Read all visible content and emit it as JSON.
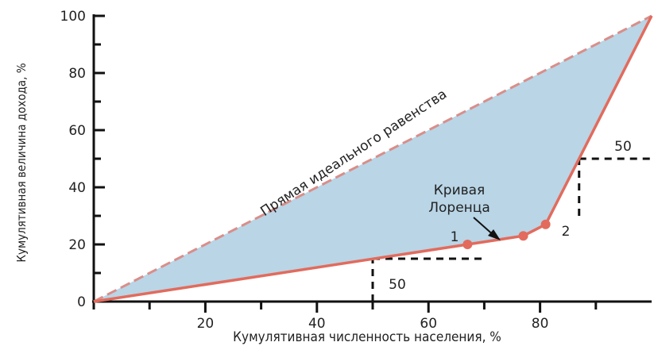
{
  "chart_data": {
    "type": "line",
    "xlabel": "Кумулятивная численность населения, %",
    "ylabel": "Кумулятивная величина дохода, %",
    "xlim": [
      0,
      100
    ],
    "ylim": [
      0,
      100
    ],
    "x_ticks": [
      20,
      40,
      60,
      80
    ],
    "y_ticks": [
      0,
      20,
      40,
      60,
      80,
      100
    ],
    "grid": false,
    "colors": {
      "fill": "#b9d5e6",
      "curve": "#e26b5d",
      "equality_line": "#d98e8a",
      "guides": "#111111"
    },
    "series": [
      {
        "name": "Прямая идеального равенства",
        "x": [
          0,
          100
        ],
        "y": [
          0,
          100
        ]
      },
      {
        "name": "Кривая Лоренца",
        "x": [
          0,
          67,
          77,
          81,
          87,
          100
        ],
        "y": [
          0,
          20,
          23,
          27,
          50,
          100
        ]
      }
    ],
    "markers": [
      {
        "x": 67,
        "y": 20
      },
      {
        "x": 77,
        "y": 23
      },
      {
        "x": 81,
        "y": 27
      }
    ],
    "annotations": {
      "equality_label": "Прямая идеального равенства",
      "curve_label_line1": "Кривая",
      "curve_label_line2": "Лоренца",
      "point1": "1",
      "point2": "2",
      "guide1_value": "50",
      "guide2_value": "50"
    },
    "guides": [
      {
        "type": "hline",
        "y": 15,
        "x_from": 50,
        "x_to": 70
      },
      {
        "type": "vline",
        "x": 50,
        "y_from": 0,
        "y_to": 15
      },
      {
        "type": "hline",
        "y": 50,
        "x_from": 87,
        "x_to": 100
      },
      {
        "type": "vline",
        "x": 87,
        "y_from": 30,
        "y_to": 50
      }
    ]
  }
}
